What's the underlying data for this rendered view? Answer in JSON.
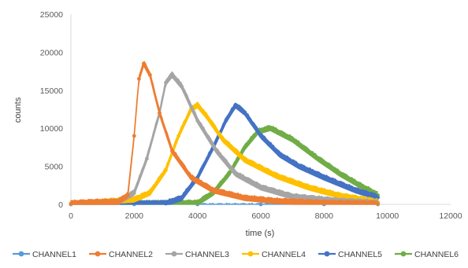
{
  "chart_data": {
    "type": "scatter",
    "title": "",
    "xlabel": "time (s)",
    "ylabel": "counts",
    "xlim": [
      0,
      12000
    ],
    "ylim": [
      0,
      25000
    ],
    "x_ticks": [
      "0",
      "2000",
      "4000",
      "6000",
      "8000",
      "10000",
      "12000"
    ],
    "y_ticks": [
      "0",
      "5000",
      "10000",
      "15000",
      "20000",
      "25000"
    ],
    "grid": false,
    "legend_position": "bottom",
    "series": [
      {
        "name": "CHANNEL1",
        "color": "#5b9bd5",
        "x": [
          0,
          2000,
          4000,
          6000,
          8000,
          9700
        ],
        "y": [
          0,
          0,
          0,
          0,
          0,
          0
        ]
      },
      {
        "name": "CHANNEL2",
        "color": "#ed7d31",
        "x": [
          0,
          700,
          1500,
          1800,
          2000,
          2150,
          2300,
          2500,
          2800,
          3200,
          3800,
          4500,
          5500,
          6500,
          8000,
          9700
        ],
        "y": [
          100,
          250,
          300,
          1200,
          9000,
          16500,
          18500,
          17000,
          12000,
          7000,
          3500,
          1800,
          800,
          400,
          150,
          50
        ]
      },
      {
        "name": "CHANNEL3",
        "color": "#a5a5a5",
        "x": [
          0,
          1500,
          2000,
          2400,
          2800,
          3000,
          3200,
          3500,
          4000,
          4600,
          5200,
          6000,
          7000,
          8500,
          9700
        ],
        "y": [
          0,
          300,
          1500,
          6000,
          12000,
          16000,
          17000,
          15500,
          11000,
          7000,
          4000,
          2200,
          1000,
          400,
          150
        ]
      },
      {
        "name": "CHANNEL4",
        "color": "#ffc000",
        "x": [
          0,
          2000,
          2500,
          3000,
          3400,
          3800,
          4000,
          4300,
          4800,
          5500,
          6500,
          7500,
          8500,
          9700
        ],
        "y": [
          0,
          600,
          1500,
          4500,
          9000,
          12500,
          13000,
          11500,
          8500,
          5800,
          3700,
          2200,
          1100,
          300
        ]
      },
      {
        "name": "CHANNEL5",
        "color": "#4472c4",
        "x": [
          0,
          3000,
          3500,
          4000,
          4500,
          4900,
          5200,
          5500,
          6000,
          6600,
          7200,
          8000,
          9000,
          9700
        ],
        "y": [
          0,
          100,
          800,
          3500,
          7500,
          11000,
          13000,
          12000,
          9000,
          6500,
          5000,
          3500,
          1800,
          900
        ]
      },
      {
        "name": "CHANNEL6",
        "color": "#70ad47",
        "x": [
          0,
          4000,
          4500,
          5000,
          5500,
          5900,
          6300,
          7000,
          7800,
          8500,
          9200,
          9700
        ],
        "y": [
          0,
          150,
          1500,
          4000,
          7500,
          9500,
          10000,
          8500,
          6000,
          4000,
          2300,
          1200
        ]
      }
    ]
  }
}
